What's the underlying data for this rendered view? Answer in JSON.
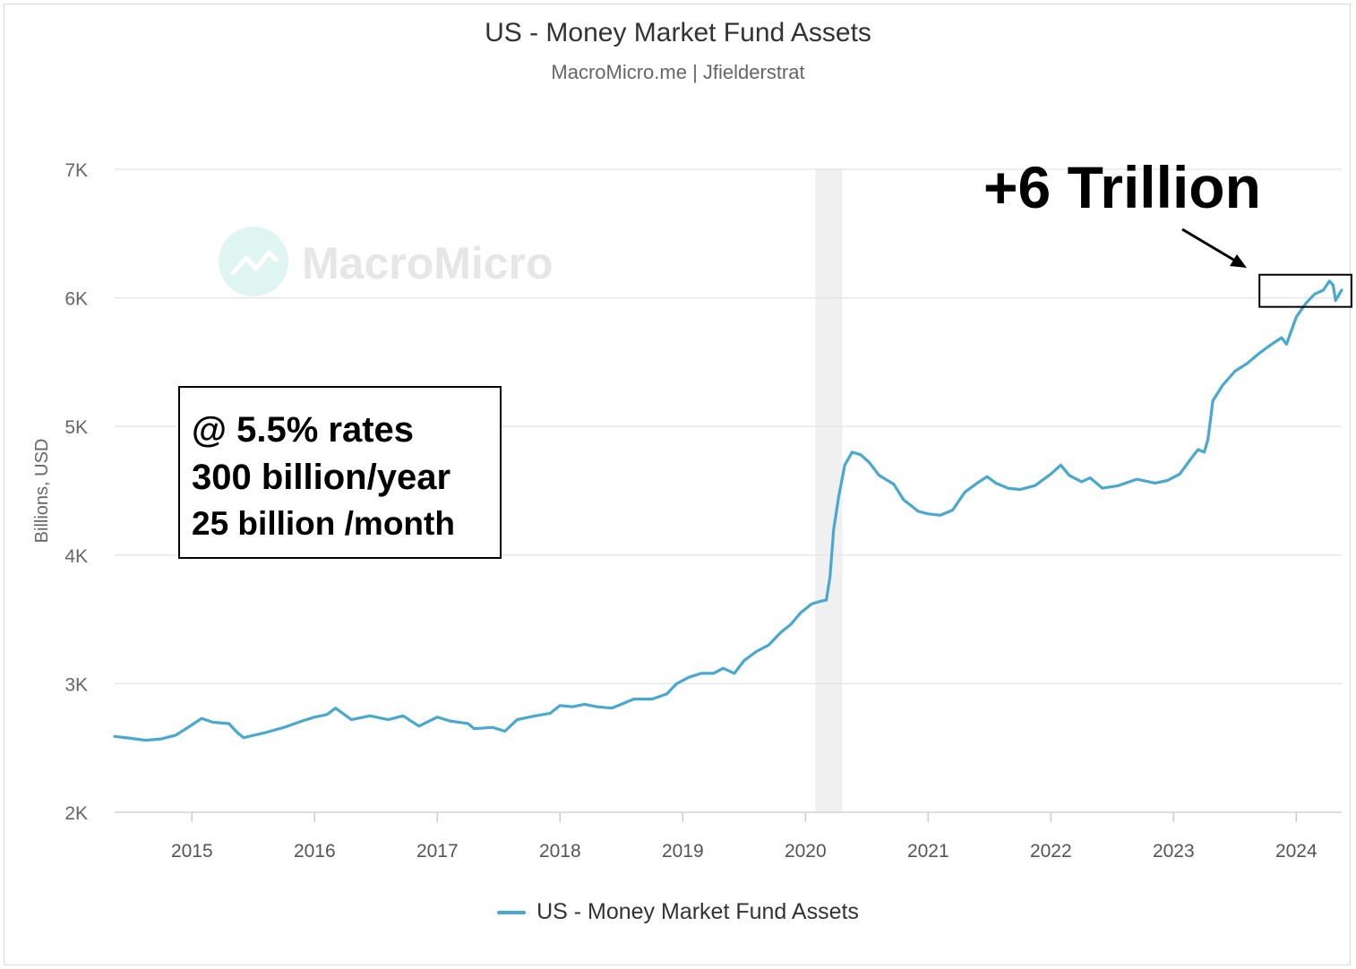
{
  "header": {
    "title": "US - Money Market Fund Assets",
    "subtitle": "MacroMicro.me | Jfielderstrat"
  },
  "watermark": "MacroMicro",
  "annotations": {
    "big_label": "+6 Trillion",
    "box_lines": [
      "@ 5.5% rates",
      "300 billion/year",
      "25 billion /month"
    ]
  },
  "colors": {
    "series": "#47a8d0",
    "grid": "#e3e3e3",
    "shade": "#f0f0f0"
  },
  "chart_data": {
    "type": "line",
    "title": "US - Money Market Fund Assets",
    "subtitle": "MacroMicro.me | Jfielderstrat",
    "ylabel": "Billions, USD",
    "xlabel": "",
    "ylim": [
      2000,
      7000
    ],
    "xlim": [
      2014.37,
      2024.37
    ],
    "yticks": [
      2000,
      3000,
      4000,
      5000,
      6000,
      7000
    ],
    "ytick_labels": [
      "2K",
      "3K",
      "4K",
      "5K",
      "6K",
      "7K"
    ],
    "xticks": [
      2015,
      2016,
      2017,
      2018,
      2019,
      2020,
      2021,
      2022,
      2023,
      2024
    ],
    "xtick_labels": [
      "2015",
      "2016",
      "2017",
      "2018",
      "2019",
      "2020",
      "2021",
      "2022",
      "2023",
      "2024"
    ],
    "grid": true,
    "legend": "bottom-center",
    "shaded_period": [
      2020.08,
      2020.3
    ],
    "highlight_box": [
      2023.7,
      2024.45,
      5930,
      6180
    ],
    "series": [
      {
        "name": "US - Money Market Fund Assets",
        "points": [
          [
            2014.37,
            2590
          ],
          [
            2014.5,
            2575
          ],
          [
            2014.62,
            2560
          ],
          [
            2014.75,
            2570
          ],
          [
            2014.87,
            2600
          ],
          [
            2015.0,
            2680
          ],
          [
            2015.08,
            2730
          ],
          [
            2015.17,
            2700
          ],
          [
            2015.3,
            2690
          ],
          [
            2015.37,
            2620
          ],
          [
            2015.42,
            2580
          ],
          [
            2015.6,
            2620
          ],
          [
            2015.75,
            2660
          ],
          [
            2015.9,
            2710
          ],
          [
            2016.0,
            2740
          ],
          [
            2016.1,
            2760
          ],
          [
            2016.17,
            2810
          ],
          [
            2016.3,
            2720
          ],
          [
            2016.45,
            2750
          ],
          [
            2016.6,
            2720
          ],
          [
            2016.72,
            2750
          ],
          [
            2016.85,
            2670
          ],
          [
            2017.0,
            2740
          ],
          [
            2017.1,
            2710
          ],
          [
            2017.25,
            2690
          ],
          [
            2017.3,
            2650
          ],
          [
            2017.45,
            2660
          ],
          [
            2017.55,
            2630
          ],
          [
            2017.65,
            2720
          ],
          [
            2017.8,
            2750
          ],
          [
            2017.92,
            2770
          ],
          [
            2018.0,
            2830
          ],
          [
            2018.1,
            2820
          ],
          [
            2018.2,
            2840
          ],
          [
            2018.3,
            2820
          ],
          [
            2018.42,
            2810
          ],
          [
            2018.5,
            2840
          ],
          [
            2018.6,
            2880
          ],
          [
            2018.75,
            2880
          ],
          [
            2018.87,
            2920
          ],
          [
            2018.95,
            3000
          ],
          [
            2019.05,
            3050
          ],
          [
            2019.15,
            3080
          ],
          [
            2019.25,
            3080
          ],
          [
            2019.33,
            3120
          ],
          [
            2019.42,
            3080
          ],
          [
            2019.5,
            3180
          ],
          [
            2019.6,
            3250
          ],
          [
            2019.7,
            3300
          ],
          [
            2019.8,
            3400
          ],
          [
            2019.88,
            3460
          ],
          [
            2019.96,
            3550
          ],
          [
            2020.05,
            3620
          ],
          [
            2020.12,
            3640
          ],
          [
            2020.17,
            3650
          ],
          [
            2020.2,
            3830
          ],
          [
            2020.23,
            4200
          ],
          [
            2020.27,
            4450
          ],
          [
            2020.32,
            4700
          ],
          [
            2020.38,
            4800
          ],
          [
            2020.45,
            4780
          ],
          [
            2020.52,
            4720
          ],
          [
            2020.6,
            4620
          ],
          [
            2020.72,
            4550
          ],
          [
            2020.8,
            4430
          ],
          [
            2020.92,
            4340
          ],
          [
            2021.0,
            4320
          ],
          [
            2021.1,
            4310
          ],
          [
            2021.2,
            4350
          ],
          [
            2021.3,
            4490
          ],
          [
            2021.4,
            4560
          ],
          [
            2021.48,
            4610
          ],
          [
            2021.55,
            4560
          ],
          [
            2021.65,
            4520
          ],
          [
            2021.75,
            4510
          ],
          [
            2021.87,
            4540
          ],
          [
            2022.0,
            4630
          ],
          [
            2022.08,
            4700
          ],
          [
            2022.15,
            4620
          ],
          [
            2022.25,
            4570
          ],
          [
            2022.32,
            4600
          ],
          [
            2022.42,
            4520
          ],
          [
            2022.55,
            4540
          ],
          [
            2022.7,
            4590
          ],
          [
            2022.85,
            4560
          ],
          [
            2022.95,
            4580
          ],
          [
            2023.05,
            4630
          ],
          [
            2023.15,
            4760
          ],
          [
            2023.2,
            4820
          ],
          [
            2023.25,
            4800
          ],
          [
            2023.28,
            4900
          ],
          [
            2023.32,
            5200
          ],
          [
            2023.4,
            5320
          ],
          [
            2023.5,
            5430
          ],
          [
            2023.6,
            5490
          ],
          [
            2023.7,
            5570
          ],
          [
            2023.8,
            5640
          ],
          [
            2023.88,
            5690
          ],
          [
            2023.92,
            5640
          ],
          [
            2024.0,
            5850
          ],
          [
            2024.08,
            5960
          ],
          [
            2024.15,
            6030
          ],
          [
            2024.22,
            6060
          ],
          [
            2024.27,
            6130
          ],
          [
            2024.3,
            6100
          ],
          [
            2024.32,
            5980
          ],
          [
            2024.37,
            6060
          ]
        ]
      }
    ]
  }
}
